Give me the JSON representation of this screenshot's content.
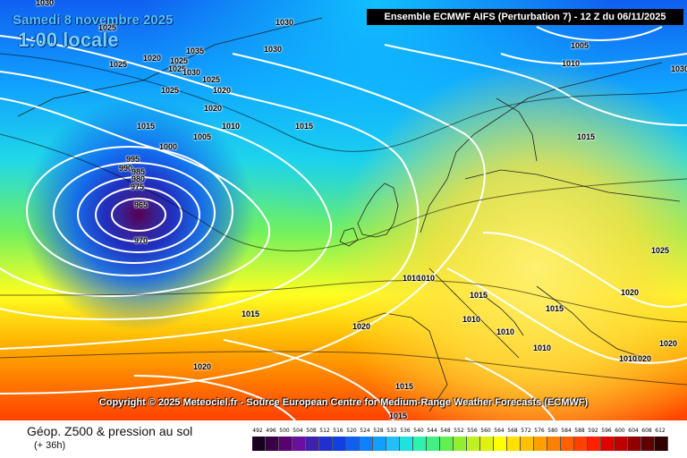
{
  "header": {
    "date": "Samedi 8 novembre 2025",
    "local_time": "1:00 locale",
    "run": "Ensemble ECMWF AIFS  (Perturbation 7)  -  12 Z du 06/11/2025"
  },
  "copyright": "Copyright © 2025 Meteociel.fr - Source European Centre for Medium-Range Weather Forecasts (ECMWF)",
  "footer": {
    "title": "Géop. Z500 & pression au sol",
    "lead": "(+ 36h)"
  },
  "map": {
    "low_center_label": "965",
    "isobar_labels": [
      "1030",
      "1025",
      "1030",
      "1030",
      "1025",
      "1035",
      "1025",
      "1020",
      "1025",
      "1030",
      "1025",
      "1020",
      "1025",
      "1020",
      "1015",
      "1010",
      "1015",
      "1005",
      "1000",
      "995",
      "990",
      "985",
      "980",
      "975",
      "965",
      "970",
      "1015",
      "1010",
      "1010",
      "1015",
      "1010",
      "1020",
      "1015",
      "1010",
      "1020",
      "1015",
      "1015",
      "1020",
      "1025",
      "1010",
      "1020",
      "1020",
      "1010",
      "1005",
      "1010",
      "1015",
      "1030"
    ]
  },
  "scale": {
    "values": [
      "492",
      "496",
      "500",
      "504",
      "508",
      "512",
      "516",
      "520",
      "524",
      "528",
      "532",
      "536",
      "540",
      "544",
      "548",
      "552",
      "556",
      "560",
      "564",
      "568",
      "572",
      "576",
      "580",
      "584",
      "588",
      "592",
      "596",
      "600",
      "604",
      "608",
      "612"
    ],
    "colors": [
      "#1a0020",
      "#3a0046",
      "#5a0070",
      "#6a10a0",
      "#4020b0",
      "#2030d0",
      "#1040e0",
      "#1060f0",
      "#1080ff",
      "#10a0ff",
      "#20c0ff",
      "#20e0e0",
      "#30f0b0",
      "#40f080",
      "#60f050",
      "#90f030",
      "#c0f020",
      "#e0f010",
      "#ffff00",
      "#ffe000",
      "#ffc000",
      "#ffa000",
      "#ff8000",
      "#ff6000",
      "#ff4000",
      "#ff2000",
      "#e00000",
      "#c00000",
      "#900000",
      "#600000",
      "#300000"
    ]
  }
}
